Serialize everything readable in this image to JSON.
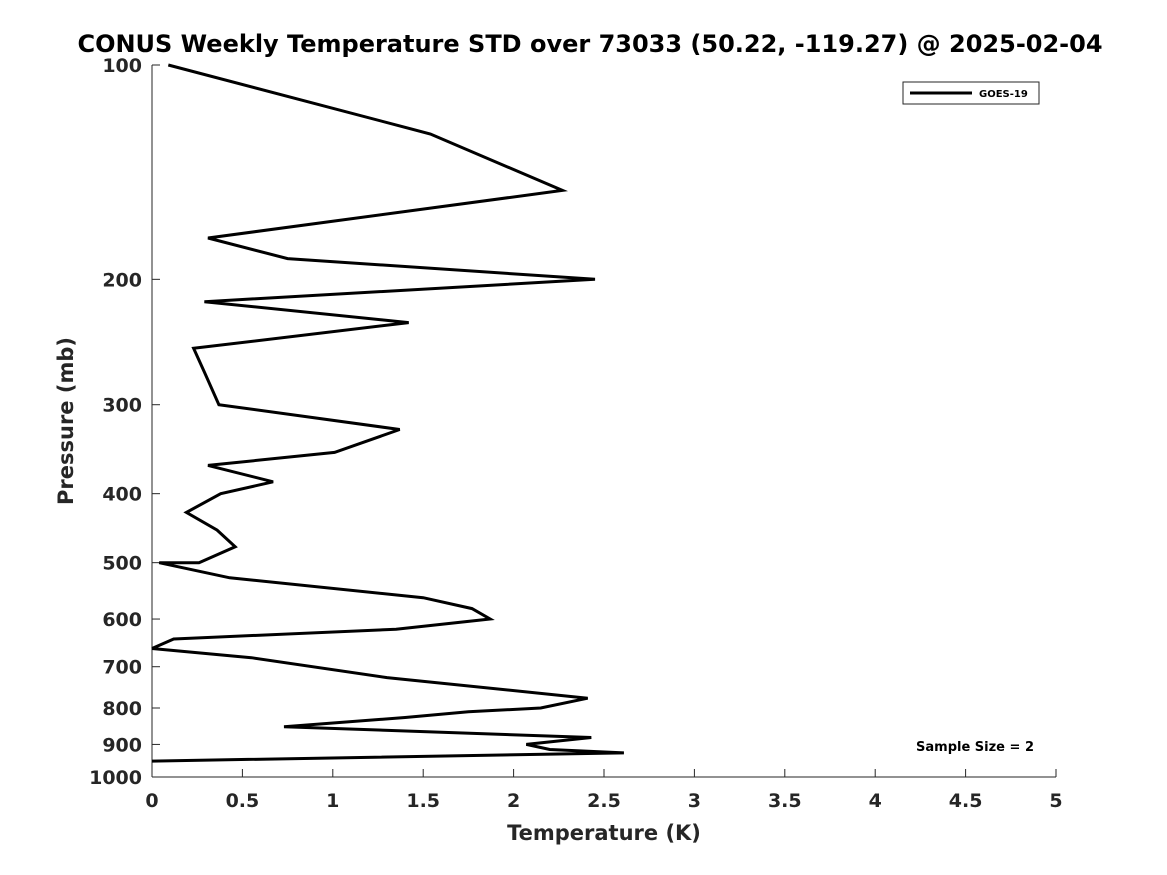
{
  "chart_data": {
    "type": "line",
    "title": "CONUS Weekly Temperature STD over 73033 (50.22, -119.27) @ 2025-02-04",
    "xlabel": "Temperature (K)",
    "ylabel": "Pressure (mb)",
    "xlim": [
      0,
      5
    ],
    "ylim": [
      100,
      1000
    ],
    "y_scale": "log",
    "y_reversed": true,
    "x_ticks": [
      0,
      0.5,
      1,
      1.5,
      2,
      2.5,
      3,
      3.5,
      4,
      4.5,
      5
    ],
    "x_tick_labels": [
      "0",
      "0.5",
      "1",
      "1.5",
      "2",
      "2.5",
      "3",
      "3.5",
      "4",
      "4.5",
      "5"
    ],
    "y_ticks": [
      100,
      200,
      300,
      400,
      500,
      600,
      700,
      800,
      900,
      1000
    ],
    "y_tick_labels": [
      "100",
      "200",
      "300",
      "400",
      "500",
      "600",
      "700",
      "800",
      "900",
      "1000"
    ],
    "legend_position": "top-right",
    "annotation": "Sample Size = 2",
    "series": [
      {
        "name": "GOES-19",
        "color": "#000000",
        "points": [
          {
            "x": 0.09,
            "y": 100
          },
          {
            "x": 1.54,
            "y": 125
          },
          {
            "x": 2.27,
            "y": 150
          },
          {
            "x": 0.31,
            "y": 175
          },
          {
            "x": 0.75,
            "y": 187
          },
          {
            "x": 2.45,
            "y": 200
          },
          {
            "x": 0.29,
            "y": 215
          },
          {
            "x": 1.42,
            "y": 230
          },
          {
            "x": 0.23,
            "y": 250
          },
          {
            "x": 0.29,
            "y": 270
          },
          {
            "x": 0.37,
            "y": 300
          },
          {
            "x": 1.37,
            "y": 325
          },
          {
            "x": 1.01,
            "y": 350
          },
          {
            "x": 0.31,
            "y": 365
          },
          {
            "x": 0.67,
            "y": 385
          },
          {
            "x": 0.38,
            "y": 400
          },
          {
            "x": 0.19,
            "y": 425
          },
          {
            "x": 0.36,
            "y": 450
          },
          {
            "x": 0.46,
            "y": 475
          },
          {
            "x": 0.26,
            "y": 500
          },
          {
            "x": 0.04,
            "y": 500
          },
          {
            "x": 0.43,
            "y": 525
          },
          {
            "x": 1.5,
            "y": 560
          },
          {
            "x": 1.77,
            "y": 580
          },
          {
            "x": 1.87,
            "y": 600
          },
          {
            "x": 1.35,
            "y": 620
          },
          {
            "x": 0.12,
            "y": 640
          },
          {
            "x": 0.0,
            "y": 660
          },
          {
            "x": 0.55,
            "y": 680
          },
          {
            "x": 1.3,
            "y": 725
          },
          {
            "x": 2.41,
            "y": 775
          },
          {
            "x": 2.15,
            "y": 800
          },
          {
            "x": 1.75,
            "y": 810
          },
          {
            "x": 1.4,
            "y": 825
          },
          {
            "x": 0.73,
            "y": 850
          },
          {
            "x": 2.43,
            "y": 880
          },
          {
            "x": 2.07,
            "y": 900
          },
          {
            "x": 2.2,
            "y": 915
          },
          {
            "x": 2.61,
            "y": 925
          },
          {
            "x": 0.0,
            "y": 950
          }
        ]
      }
    ]
  }
}
